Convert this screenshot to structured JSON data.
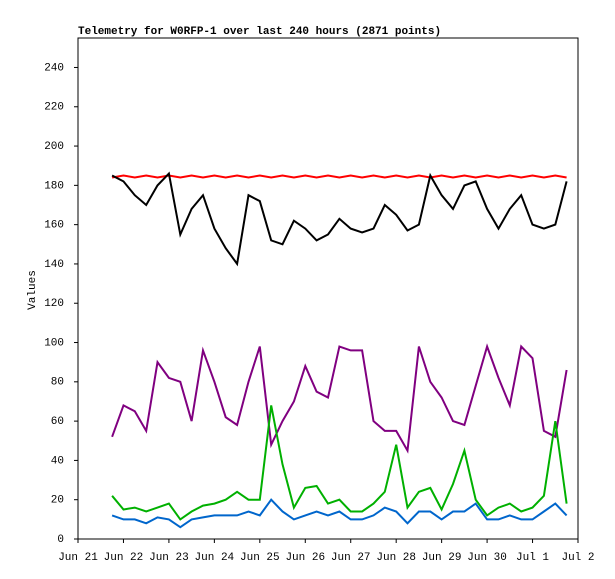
{
  "chart_data": {
    "type": "line",
    "title": "Telemetry for W0RFP-1 over last 240 hours (2871 points)",
    "y_label": "Values",
    "x": [
      21.75,
      22,
      22.25,
      22.5,
      22.75,
      23,
      23.25,
      23.5,
      23.75,
      24,
      24.25,
      24.5,
      24.75,
      25,
      25.25,
      25.5,
      25.75,
      26,
      26.25,
      26.5,
      26.75,
      27,
      27.25,
      27.5,
      27.75,
      28,
      28.25,
      28.5,
      28.75,
      29,
      29.25,
      29.5,
      29.75,
      30,
      30.25,
      30.5,
      30.75,
      31,
      31.25,
      31.5,
      31.75
    ],
    "series": [
      {
        "color": "#ff0000",
        "values": [
          184,
          185,
          184,
          185,
          184,
          185,
          184,
          185,
          184,
          185,
          184,
          185,
          184,
          185,
          184,
          185,
          184,
          185,
          184,
          185,
          184,
          185,
          184,
          185,
          184,
          185,
          184,
          185,
          184,
          185,
          184,
          185,
          184,
          185,
          184,
          185,
          184,
          185,
          184,
          185,
          184
        ]
      },
      {
        "color": "#000000",
        "values": [
          185,
          182,
          175,
          170,
          180,
          186,
          155,
          168,
          175,
          158,
          148,
          140,
          175,
          172,
          152,
          150,
          162,
          158,
          152,
          155,
          163,
          158,
          156,
          158,
          170,
          165,
          157,
          160,
          185,
          175,
          168,
          180,
          182,
          168,
          158,
          168,
          175,
          160,
          158,
          160,
          182
        ]
      },
      {
        "color": "#800080",
        "values": [
          52,
          68,
          65,
          55,
          90,
          82,
          80,
          60,
          96,
          80,
          62,
          58,
          80,
          98,
          48,
          60,
          70,
          88,
          75,
          72,
          98,
          96,
          96,
          60,
          55,
          55,
          45,
          98,
          80,
          72,
          60,
          58,
          78,
          98,
          82,
          68,
          98,
          92,
          55,
          52,
          86
        ]
      },
      {
        "color": "#00b000",
        "values": [
          22,
          15,
          16,
          14,
          16,
          18,
          10,
          14,
          17,
          18,
          20,
          24,
          20,
          20,
          68,
          38,
          16,
          26,
          27,
          18,
          20,
          14,
          14,
          18,
          24,
          48,
          16,
          24,
          26,
          15,
          28,
          45,
          20,
          12,
          16,
          18,
          14,
          16,
          22,
          60,
          18
        ]
      },
      {
        "color": "#0066cc",
        "values": [
          12,
          10,
          10,
          8,
          11,
          10,
          6,
          10,
          11,
          12,
          12,
          12,
          14,
          12,
          20,
          14,
          10,
          12,
          14,
          12,
          14,
          10,
          10,
          12,
          16,
          14,
          8,
          14,
          14,
          10,
          14,
          14,
          18,
          10,
          10,
          12,
          10,
          10,
          14,
          18,
          12
        ]
      }
    ],
    "xlim": [
      21,
      32
    ],
    "xticks": [
      {
        "value": 21,
        "label": "Jun 21"
      },
      {
        "value": 22,
        "label": "Jun 22"
      },
      {
        "value": 23,
        "label": "Jun 23"
      },
      {
        "value": 24,
        "label": "Jun 24"
      },
      {
        "value": 25,
        "label": "Jun 25"
      },
      {
        "value": 26,
        "label": "Jun 26"
      },
      {
        "value": 27,
        "label": "Jun 27"
      },
      {
        "value": 28,
        "label": "Jun 28"
      },
      {
        "value": 29,
        "label": "Jun 29"
      },
      {
        "value": 30,
        "label": "Jun 30"
      },
      {
        "value": 31,
        "label": "Jul 1"
      },
      {
        "value": 32,
        "label": "Jul 2"
      }
    ],
    "ylim": [
      0,
      255
    ],
    "yticks": [
      0,
      20,
      40,
      60,
      80,
      100,
      120,
      140,
      160,
      180,
      200,
      220,
      240
    ],
    "grid": false
  }
}
